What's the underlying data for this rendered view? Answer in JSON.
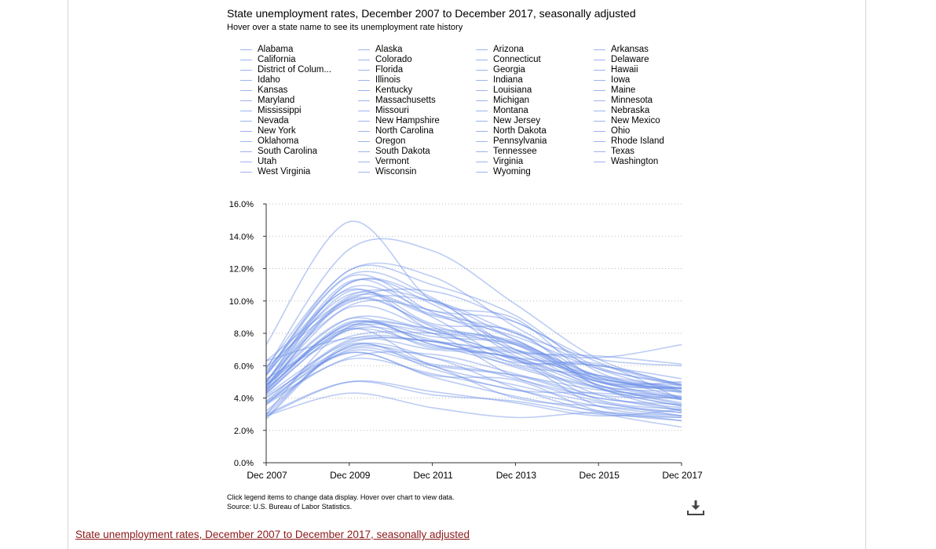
{
  "chart_data": {
    "type": "line",
    "title": "State unemployment rates, December 2007 to December 2017, seasonally adjusted",
    "subtitle": "Hover over a state name to see its unemployment rate history",
    "x_ticks": [
      "Dec 2007",
      "Dec 2009",
      "Dec 2011",
      "Dec 2013",
      "Dec 2015",
      "Dec 2017"
    ],
    "x_range": [
      "Dec 2007",
      "Dec 2017"
    ],
    "y_ticks": [
      "0.0%",
      "2.0%",
      "4.0%",
      "6.0%",
      "8.0%",
      "10.0%",
      "12.0%",
      "14.0%",
      "16.0%"
    ],
    "ylim": [
      0,
      16
    ],
    "grid": true,
    "legend_placement": "top",
    "series_color": "#6a8fe6",
    "series": [
      {
        "name": "Alabama",
        "values": [
          5.0,
          11.2,
          9.0,
          6.3,
          6.1,
          3.9
        ]
      },
      {
        "name": "Alaska",
        "values": [
          6.3,
          7.7,
          7.5,
          6.9,
          6.5,
          7.3
        ]
      },
      {
        "name": "Arizona",
        "values": [
          4.4,
          10.2,
          9.1,
          7.8,
          5.8,
          4.9
        ]
      },
      {
        "name": "Arkansas",
        "values": [
          5.2,
          7.8,
          8.0,
          7.4,
          4.8,
          3.7
        ]
      },
      {
        "name": "California",
        "values": [
          5.9,
          11.9,
          11.5,
          8.4,
          5.8,
          4.4
        ]
      },
      {
        "name": "Colorado",
        "values": [
          4.3,
          8.3,
          8.0,
          6.4,
          3.5,
          2.9
        ]
      },
      {
        "name": "Connecticut",
        "values": [
          4.6,
          8.4,
          8.3,
          7.4,
          5.4,
          4.6
        ]
      },
      {
        "name": "Delaware",
        "values": [
          4.4,
          8.7,
          7.3,
          6.0,
          4.7,
          4.4
        ]
      },
      {
        "name": "District of Columbia",
        "values": [
          5.9,
          9.9,
          10.0,
          8.0,
          6.4,
          6.0
        ]
      },
      {
        "name": "Florida",
        "values": [
          4.6,
          11.1,
          9.8,
          6.6,
          5.0,
          3.9
        ]
      },
      {
        "name": "Georgia",
        "values": [
          5.0,
          10.3,
          10.0,
          7.6,
          5.3,
          4.4
        ]
      },
      {
        "name": "Hawaii",
        "values": [
          3.0,
          7.2,
          6.5,
          4.6,
          3.1,
          2.2
        ]
      },
      {
        "name": "Idaho",
        "values": [
          3.0,
          8.4,
          8.0,
          5.3,
          3.8,
          2.9
        ]
      },
      {
        "name": "Illinois",
        "values": [
          5.4,
          10.8,
          9.4,
          8.7,
          5.9,
          4.8
        ]
      },
      {
        "name": "Indiana",
        "values": [
          4.8,
          10.1,
          8.5,
          7.0,
          4.6,
          3.5
        ]
      },
      {
        "name": "Iowa",
        "values": [
          3.7,
          6.4,
          5.5,
          4.5,
          3.5,
          2.9
        ]
      },
      {
        "name": "Kansas",
        "values": [
          4.0,
          7.1,
          6.5,
          5.2,
          4.0,
          3.4
        ]
      },
      {
        "name": "Kentucky",
        "values": [
          5.5,
          10.4,
          9.2,
          8.0,
          5.3,
          4.6
        ]
      },
      {
        "name": "Louisiana",
        "values": [
          4.2,
          7.4,
          7.5,
          6.2,
          6.0,
          4.8
        ]
      },
      {
        "name": "Maine",
        "values": [
          4.8,
          8.2,
          7.2,
          6.4,
          3.9,
          3.3
        ]
      },
      {
        "name": "Maryland",
        "values": [
          3.6,
          7.5,
          7.0,
          6.5,
          4.8,
          4.0
        ]
      },
      {
        "name": "Massachusetts",
        "values": [
          4.5,
          8.5,
          7.1,
          7.0,
          4.8,
          3.6
        ]
      },
      {
        "name": "Michigan",
        "values": [
          7.3,
          14.9,
          10.0,
          8.9,
          5.1,
          4.6
        ]
      },
      {
        "name": "Minnesota",
        "values": [
          4.8,
          8.3,
          6.0,
          4.8,
          3.7,
          3.1
        ]
      },
      {
        "name": "Mississippi",
        "values": [
          6.3,
          10.1,
          10.6,
          8.7,
          6.2,
          4.7
        ]
      },
      {
        "name": "Missouri",
        "values": [
          5.1,
          9.6,
          8.2,
          6.5,
          4.6,
          3.5
        ]
      },
      {
        "name": "Montana",
        "values": [
          3.6,
          6.5,
          6.7,
          5.5,
          4.2,
          4.0
        ]
      },
      {
        "name": "Nebraska",
        "values": [
          3.0,
          5.0,
          4.2,
          3.8,
          3.0,
          2.8
        ]
      },
      {
        "name": "Nevada",
        "values": [
          5.8,
          13.2,
          13.1,
          9.8,
          6.4,
          4.8
        ]
      },
      {
        "name": "New Hampshire",
        "values": [
          3.7,
          6.8,
          5.4,
          5.1,
          3.2,
          2.6
        ]
      },
      {
        "name": "New Jersey",
        "values": [
          4.7,
          9.7,
          9.4,
          7.6,
          5.1,
          4.6
        ]
      },
      {
        "name": "New Mexico",
        "values": [
          3.8,
          7.6,
          7.5,
          6.8,
          6.6,
          6.1
        ]
      },
      {
        "name": "New York",
        "values": [
          4.8,
          8.9,
          8.2,
          7.5,
          5.0,
          4.6
        ]
      },
      {
        "name": "North Carolina",
        "values": [
          5.0,
          11.1,
          10.1,
          7.0,
          5.2,
          4.5
        ]
      },
      {
        "name": "North Dakota",
        "values": [
          2.9,
          4.3,
          3.4,
          2.8,
          3.1,
          2.6
        ]
      },
      {
        "name": "Ohio",
        "values": [
          5.7,
          10.7,
          8.2,
          7.3,
          5.0,
          5.0
        ]
      },
      {
        "name": "Oklahoma",
        "values": [
          3.8,
          6.9,
          6.0,
          5.4,
          4.5,
          4.1
        ]
      },
      {
        "name": "Oregon",
        "values": [
          5.4,
          11.5,
          9.3,
          7.3,
          5.0,
          4.1
        ]
      },
      {
        "name": "Pennsylvania",
        "values": [
          4.5,
          8.6,
          7.8,
          7.3,
          5.2,
          4.8
        ]
      },
      {
        "name": "Rhode Island",
        "values": [
          5.5,
          11.9,
          11.0,
          9.1,
          5.6,
          4.3
        ]
      },
      {
        "name": "South Carolina",
        "values": [
          5.6,
          11.6,
          10.2,
          6.8,
          5.4,
          4.0
        ]
      },
      {
        "name": "South Dakota",
        "values": [
          2.9,
          5.0,
          4.4,
          3.7,
          2.9,
          3.3
        ]
      },
      {
        "name": "Tennessee",
        "values": [
          5.0,
          10.6,
          8.6,
          8.1,
          4.7,
          3.2
        ]
      },
      {
        "name": "Texas",
        "values": [
          4.3,
          8.2,
          7.6,
          5.9,
          4.6,
          3.9
        ]
      },
      {
        "name": "Utah",
        "values": [
          2.7,
          7.2,
          6.0,
          4.0,
          3.5,
          3.1
        ]
      },
      {
        "name": "Vermont",
        "values": [
          4.1,
          6.8,
          5.3,
          4.1,
          3.2,
          2.8
        ]
      },
      {
        "name": "Virginia",
        "values": [
          3.2,
          7.0,
          6.1,
          5.4,
          4.0,
          3.6
        ]
      },
      {
        "name": "Washington",
        "values": [
          4.6,
          10.0,
          8.4,
          6.1,
          5.4,
          4.6
        ]
      },
      {
        "name": "West Virginia",
        "values": [
          4.3,
          8.6,
          7.5,
          6.5,
          6.0,
          5.2
        ]
      },
      {
        "name": "Wisconsin",
        "values": [
          4.9,
          8.9,
          7.3,
          6.4,
          4.2,
          3.2
        ]
      },
      {
        "name": "Wyoming",
        "values": [
          2.8,
          7.3,
          5.8,
          4.5,
          4.3,
          4.0
        ]
      }
    ]
  },
  "footer": {
    "note": "Click legend items to change data display. Hover over chart to view data.",
    "source": "Source: U.S. Bureau of Labor Statistics."
  },
  "icons": {
    "download": "download-icon"
  },
  "next_heading": "State unemployment rates, December 2007 to December 2017, seasonally adjusted"
}
